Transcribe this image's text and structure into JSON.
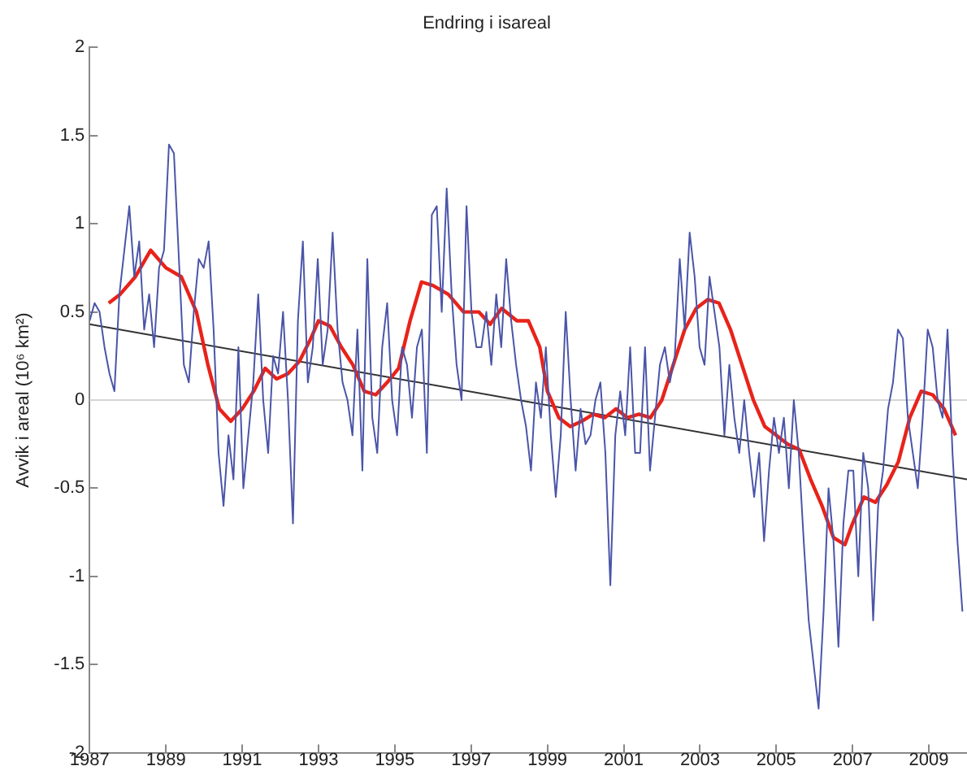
{
  "chart_data": {
    "type": "line",
    "title": "Endring i isareal",
    "ylabel": "Avvik i areal (10⁶ km²)",
    "xlim": [
      1987,
      2010
    ],
    "xticks": [
      1987,
      1989,
      1991,
      1993,
      1995,
      1997,
      1999,
      2001,
      2003,
      2005,
      2007,
      2009
    ],
    "ylim": [
      -2,
      2
    ],
    "yticks": [
      -2,
      -1.5,
      -1,
      -0.5,
      0,
      0.5,
      1,
      1.5,
      2
    ],
    "grid": false,
    "legend": false,
    "marker": "none",
    "line_style": "solid",
    "ref_lines": [
      {
        "axis": "y",
        "value": 0,
        "color": "#d4d4d4"
      }
    ],
    "series": [
      {
        "color": "#4a55a8",
        "x": [
          1987,
          1987.13,
          1987.26,
          1987.39,
          1987.52,
          1987.65,
          1987.78,
          1987.91,
          1988.04,
          1988.17,
          1988.3,
          1988.43,
          1988.56,
          1988.69,
          1988.82,
          1988.95,
          1989.08,
          1989.21,
          1989.34,
          1989.47,
          1989.6,
          1989.73,
          1989.86,
          1989.99,
          1990.12,
          1990.25,
          1990.38,
          1990.51,
          1990.64,
          1990.77,
          1990.9,
          1991.03,
          1991.16,
          1991.29,
          1991.42,
          1991.55,
          1991.68,
          1991.81,
          1991.94,
          1992.07,
          1992.2,
          1992.33,
          1992.46,
          1992.59,
          1992.72,
          1992.85,
          1992.98,
          1993.11,
          1993.24,
          1993.37,
          1993.5,
          1993.63,
          1993.76,
          1993.89,
          1994.02,
          1994.15,
          1994.28,
          1994.41,
          1994.54,
          1994.67,
          1994.8,
          1994.93,
          1995.06,
          1995.19,
          1995.32,
          1995.45,
          1995.58,
          1995.71,
          1995.84,
          1995.97,
          1996.1,
          1996.23,
          1996.36,
          1996.49,
          1996.62,
          1996.75,
          1996.88,
          1997.01,
          1997.14,
          1997.27,
          1997.4,
          1997.53,
          1997.66,
          1997.79,
          1997.92,
          1998.05,
          1998.18,
          1998.31,
          1998.44,
          1998.57,
          1998.7,
          1998.83,
          1998.96,
          1999.09,
          1999.22,
          1999.35,
          1999.48,
          1999.61,
          1999.74,
          1999.87,
          2000,
          2000.13,
          2000.26,
          2000.39,
          2000.52,
          2000.65,
          2000.78,
          2000.91,
          2001.04,
          2001.17,
          2001.3,
          2001.43,
          2001.56,
          2001.69,
          2001.82,
          2001.95,
          2002.08,
          2002.21,
          2002.34,
          2002.47,
          2002.6,
          2002.73,
          2002.86,
          2002.99,
          2003.12,
          2003.25,
          2003.38,
          2003.51,
          2003.64,
          2003.77,
          2003.9,
          2004.03,
          2004.16,
          2004.29,
          2004.42,
          2004.55,
          2004.68,
          2004.81,
          2004.94,
          2005.07,
          2005.2,
          2005.33,
          2005.46,
          2005.59,
          2005.72,
          2005.85,
          2005.98,
          2006.11,
          2006.24,
          2006.37,
          2006.5,
          2006.63,
          2006.76,
          2006.89,
          2007.02,
          2007.15,
          2007.28,
          2007.41,
          2007.54,
          2007.67,
          2007.8,
          2007.93,
          2008.06,
          2008.19,
          2008.32,
          2008.45,
          2008.58,
          2008.71,
          2008.84,
          2008.97,
          2009.1,
          2009.23,
          2009.36,
          2009.49,
          2009.62,
          2009.75,
          2009.88
        ],
        "values": [
          0.45,
          0.55,
          0.5,
          0.3,
          0.15,
          0.05,
          0.6,
          0.85,
          1.1,
          0.7,
          0.9,
          0.4,
          0.6,
          0.3,
          0.75,
          0.85,
          1.45,
          1.4,
          0.8,
          0.2,
          0.1,
          0.5,
          0.8,
          0.75,
          0.9,
          0.4,
          -0.3,
          -0.6,
          -0.2,
          -0.45,
          0.3,
          -0.5,
          -0.2,
          0.1,
          0.6,
          0.0,
          -0.3,
          0.25,
          0.15,
          0.5,
          0.0,
          -0.7,
          0.45,
          0.9,
          0.1,
          0.3,
          0.8,
          0.2,
          0.4,
          0.95,
          0.4,
          0.1,
          0.0,
          -0.2,
          0.4,
          -0.4,
          0.8,
          -0.1,
          -0.3,
          0.3,
          0.55,
          0.0,
          -0.2,
          0.3,
          0.2,
          -0.1,
          0.3,
          0.4,
          -0.3,
          1.05,
          1.1,
          0.5,
          1.2,
          0.6,
          0.2,
          0.0,
          1.1,
          0.5,
          0.3,
          0.3,
          0.5,
          0.2,
          0.6,
          0.3,
          0.8,
          0.45,
          0.2,
          0.0,
          -0.15,
          -0.4,
          0.1,
          -0.1,
          0.3,
          -0.2,
          -0.55,
          -0.2,
          0.5,
          0.0,
          -0.4,
          -0.05,
          -0.25,
          -0.2,
          0.0,
          0.1,
          -0.3,
          -1.05,
          -0.2,
          0.05,
          -0.2,
          0.3,
          -0.3,
          -0.3,
          0.3,
          -0.4,
          -0.1,
          0.2,
          0.3,
          0.1,
          0.25,
          0.8,
          0.4,
          0.95,
          0.7,
          0.3,
          0.2,
          0.7,
          0.5,
          0.3,
          -0.2,
          0.2,
          -0.1,
          -0.3,
          0.0,
          -0.3,
          -0.55,
          -0.3,
          -0.8,
          -0.4,
          -0.1,
          -0.3,
          -0.1,
          -0.5,
          0.0,
          -0.3,
          -0.8,
          -1.25,
          -1.5,
          -1.75,
          -1.2,
          -0.5,
          -0.8,
          -1.4,
          -0.7,
          -0.4,
          -0.4,
          -1.0,
          -0.3,
          -0.5,
          -1.25,
          -0.6,
          -0.4,
          -0.05,
          0.1,
          0.4,
          0.35,
          -0.1,
          -0.3,
          -0.5,
          -0.1,
          0.4,
          0.3,
          0.0,
          -0.1,
          0.4,
          -0.3,
          -0.8,
          -1.2
        ]
      },
      {
        "color": "#e8231a",
        "x": [
          1987.5,
          1987.8,
          1988.2,
          1988.6,
          1989.0,
          1989.4,
          1989.8,
          1990.1,
          1990.4,
          1990.7,
          1991.0,
          1991.3,
          1991.6,
          1991.9,
          1992.2,
          1992.5,
          1992.8,
          1993.0,
          1993.3,
          1993.6,
          1993.9,
          1994.2,
          1994.5,
          1994.8,
          1995.1,
          1995.4,
          1995.7,
          1996.0,
          1996.4,
          1996.8,
          1997.2,
          1997.5,
          1997.8,
          1998.2,
          1998.5,
          1998.8,
          1999.0,
          1999.3,
          1999.6,
          1999.9,
          2000.2,
          2000.5,
          2000.8,
          2001.1,
          2001.4,
          2001.7,
          2002.0,
          2002.3,
          2002.6,
          2002.9,
          2003.2,
          2003.5,
          2003.8,
          2004.1,
          2004.4,
          2004.7,
          2005.0,
          2005.3,
          2005.6,
          2005.9,
          2006.2,
          2006.5,
          2006.8,
          2007.0,
          2007.3,
          2007.6,
          2007.9,
          2008.2,
          2008.5,
          2008.8,
          2009.1,
          2009.4,
          2009.7
        ],
        "values": [
          0.55,
          0.6,
          0.7,
          0.85,
          0.75,
          0.7,
          0.5,
          0.2,
          -0.05,
          -0.12,
          -0.05,
          0.05,
          0.18,
          0.12,
          0.15,
          0.22,
          0.35,
          0.45,
          0.42,
          0.3,
          0.2,
          0.05,
          0.03,
          0.1,
          0.18,
          0.45,
          0.67,
          0.65,
          0.6,
          0.5,
          0.5,
          0.43,
          0.52,
          0.45,
          0.45,
          0.3,
          0.05,
          -0.1,
          -0.15,
          -0.12,
          -0.08,
          -0.1,
          -0.05,
          -0.1,
          -0.08,
          -0.1,
          0.0,
          0.2,
          0.4,
          0.52,
          0.57,
          0.55,
          0.4,
          0.2,
          0.0,
          -0.15,
          -0.2,
          -0.25,
          -0.28,
          -0.45,
          -0.6,
          -0.78,
          -0.82,
          -0.7,
          -0.55,
          -0.58,
          -0.48,
          -0.35,
          -0.1,
          0.05,
          0.03,
          -0.05,
          -0.2
        ]
      },
      {
        "type": "line",
        "color": "#333333",
        "x": [
          1987,
          2010
        ],
        "values": [
          0.43,
          -0.45
        ]
      }
    ]
  }
}
